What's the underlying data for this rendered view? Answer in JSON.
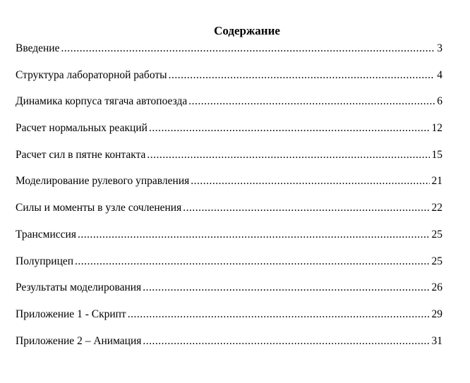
{
  "title": "Содержание",
  "entries": [
    {
      "label": "Введение",
      "page": "3"
    },
    {
      "label": "Структура лабораторной работы",
      "page": "4"
    },
    {
      "label": "Динамика корпуса тягача автопоезда",
      "page": "6"
    },
    {
      "label": "Расчет нормальных реакций",
      "page": "12"
    },
    {
      "label": "Расчет сил в пятне контакта",
      "page": "15"
    },
    {
      "label": "Моделирование рулевого управления",
      "page": "21"
    },
    {
      "label": "Силы и моменты в узле сочленения",
      "page": "22"
    },
    {
      "label": "Трансмиссия",
      "page": "25"
    },
    {
      "label": "Полуприцеп",
      "page": "25"
    },
    {
      "label": "Результаты моделирования",
      "page": "26"
    },
    {
      "label": "Приложение 1 - Скрипт",
      "page": "29"
    },
    {
      "label": "Приложение 2 – Анимация",
      "page": "31"
    }
  ]
}
